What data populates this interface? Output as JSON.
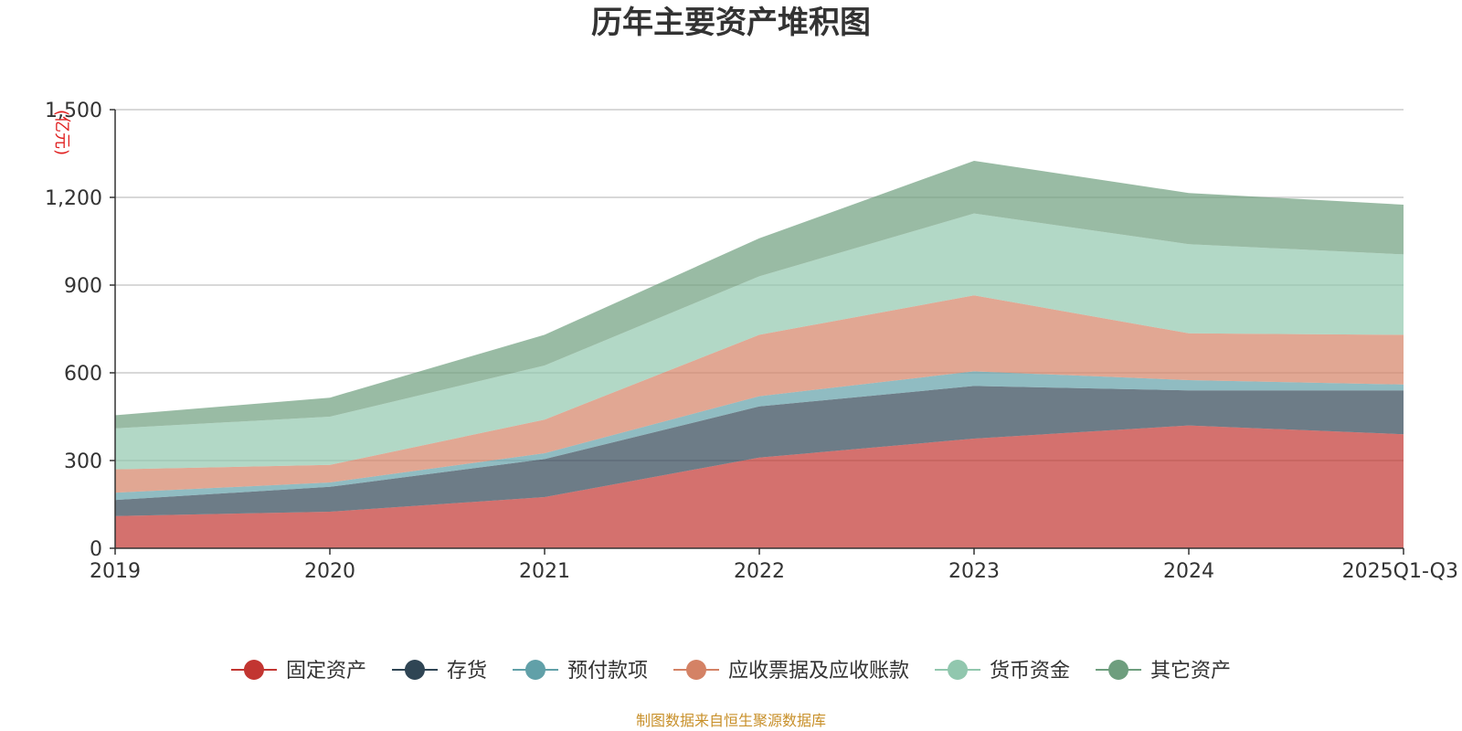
{
  "chart_data": {
    "type": "area",
    "stacked": true,
    "title": "历年主要资产堆积图",
    "ylabel": "(亿元)",
    "ylim": [
      0,
      1500
    ],
    "yticks": [
      0,
      300,
      600,
      900,
      1200,
      1500
    ],
    "ytick_labels": [
      "0",
      "300",
      "600",
      "900",
      "1,200",
      "1,500"
    ],
    "categories": [
      "2019",
      "2020",
      "2021",
      "2022",
      "2023",
      "2024",
      "2025Q1-Q3"
    ],
    "series": [
      {
        "name": "固定资产",
        "color": "#c23531",
        "values": [
          110,
          125,
          175,
          310,
          375,
          420,
          390
        ]
      },
      {
        "name": "存货",
        "color": "#2f4554",
        "values": [
          55,
          85,
          130,
          175,
          180,
          120,
          150
        ]
      },
      {
        "name": "预付款项",
        "color": "#61a0a8",
        "values": [
          25,
          15,
          20,
          35,
          50,
          35,
          20
        ]
      },
      {
        "name": "应收票据及应收账款",
        "color": "#d48265",
        "values": [
          80,
          60,
          115,
          210,
          260,
          160,
          170
        ]
      },
      {
        "name": "货币资金",
        "color": "#91c7ae",
        "values": [
          140,
          165,
          185,
          200,
          280,
          305,
          275
        ]
      },
      {
        "name": "其它资产",
        "color": "#6e9e7e",
        "values": [
          45,
          65,
          105,
          130,
          180,
          175,
          170
        ]
      }
    ],
    "legend_position": "bottom"
  },
  "source_note": "制图数据来自恒生聚源数据库"
}
